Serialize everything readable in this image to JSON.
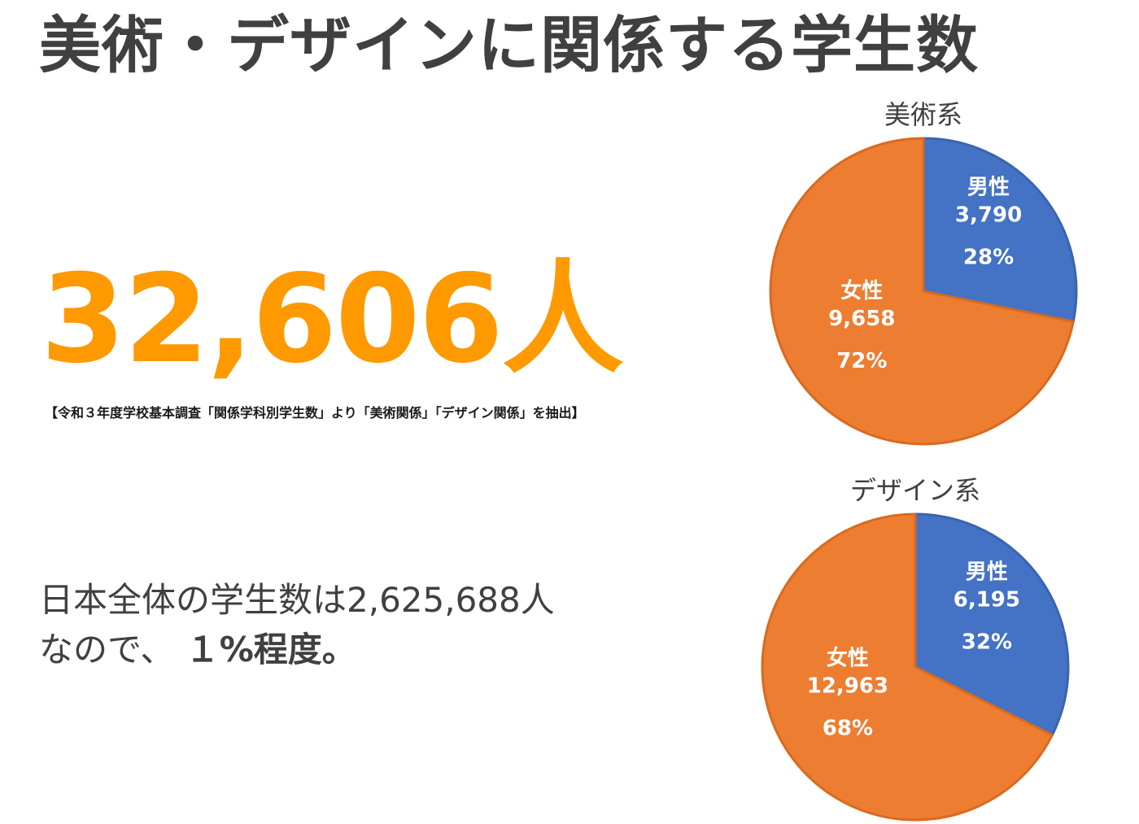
{
  "title": "美術・デザインに関係する学生数",
  "total": "32,606人",
  "source_note": "【令和３年度学校基本調査「関係学科別学生数」より「美術関係」「デザイン関係」を抽出】",
  "summary": {
    "line1": "日本全体の学生数は2,625,688人",
    "line2_prefix": "なので、",
    "line2_emphasis": "１%程度。"
  },
  "colors": {
    "male": "#4472c4",
    "female": "#ed7d31",
    "total": "#ff9900",
    "text": "#404040"
  },
  "chart_data": [
    {
      "type": "pie",
      "title": "美術系",
      "slices": [
        {
          "label": "男性",
          "value": 3790,
          "value_label": "3,790",
          "percent_label": "28%",
          "color": "#4472c4"
        },
        {
          "label": "女性",
          "value": 9658,
          "value_label": "9,658",
          "percent_label": "72%",
          "color": "#ed7d31"
        }
      ]
    },
    {
      "type": "pie",
      "title": "デザイン系",
      "slices": [
        {
          "label": "男性",
          "value": 6195,
          "value_label": "6,195",
          "percent_label": "32%",
          "color": "#4472c4"
        },
        {
          "label": "女性",
          "value": 12963,
          "value_label": "12,963",
          "percent_label": "68%",
          "color": "#ed7d31"
        }
      ]
    }
  ]
}
